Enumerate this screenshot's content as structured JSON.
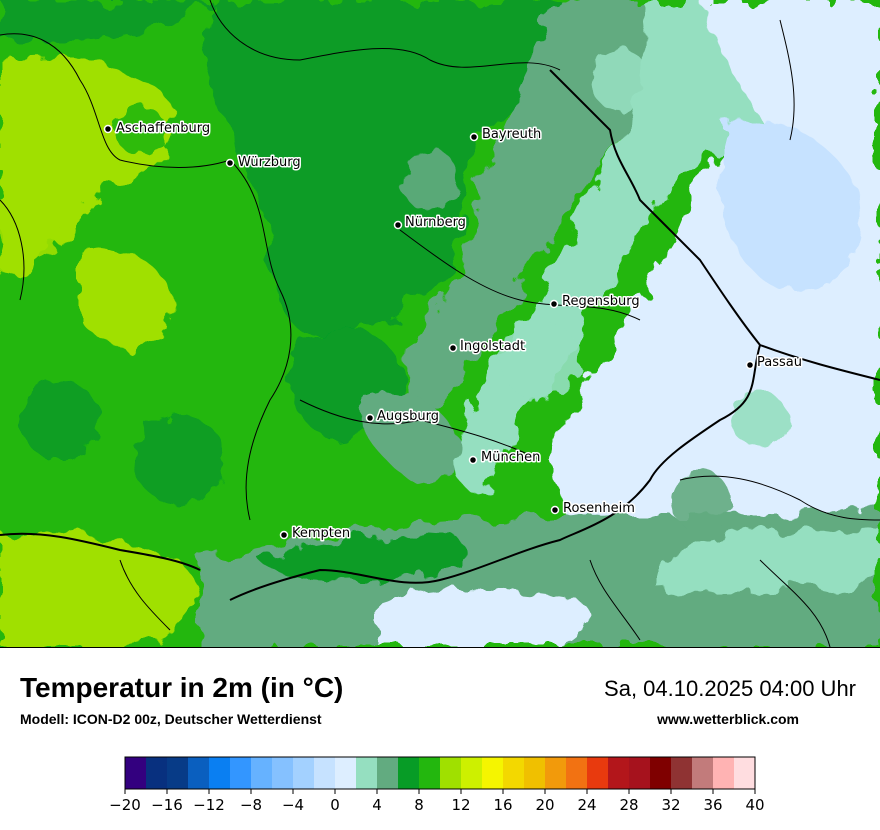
{
  "header": {
    "title": "Temperatur in 2m (in °C)",
    "subtitle": "Modell: ICON-D2 00z, Deutscher Wetterdienst",
    "datetime": "Sa, 04.10.2025 04:00 Uhr",
    "website": "www.wetterblick.com"
  },
  "map": {
    "cities": [
      "Aschaffenburg",
      "Würzburg",
      "Bayreuth",
      "Nürnberg",
      "Regensburg",
      "Ingolstadt",
      "Passau",
      "Augsburg",
      "München",
      "Rosenheim",
      "Kempten"
    ]
  },
  "legend": {
    "tick_labels": [
      "−20",
      "−16",
      "−12",
      "−8",
      "−4",
      "0",
      "4",
      "8",
      "12",
      "16",
      "20",
      "24",
      "28",
      "32",
      "36",
      "40"
    ],
    "min": -20,
    "max": 40,
    "step": 2,
    "colors": [
      "#33007f",
      "#08307f",
      "#073b87",
      "#0a5fbf",
      "#0a7ff2",
      "#3396ff",
      "#66b2ff",
      "#85c1ff",
      "#a3d1ff",
      "#c6e2ff",
      "#ddeeff",
      "#95dfc0",
      "#62ab80",
      "#079c26",
      "#23b70e",
      "#a0e000",
      "#cdf000",
      "#f5f500",
      "#f3d800",
      "#f0c000",
      "#f29a0b",
      "#f27212",
      "#e83a0e",
      "#b3161b",
      "#a6121d",
      "#7f0000",
      "#8f3333",
      "#c27b7b",
      "#ffb3b3",
      "#ffdde0"
    ]
  }
}
